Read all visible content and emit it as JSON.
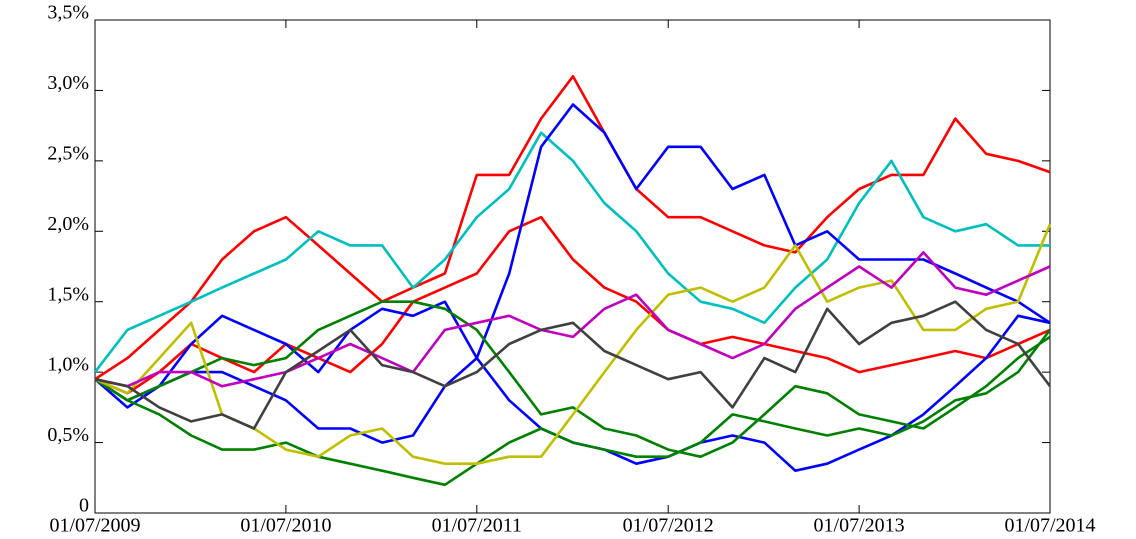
{
  "chart_data": {
    "type": "line",
    "x": [
      "2009-07-01",
      "2009-09-01",
      "2009-11-01",
      "2010-01-01",
      "2010-03-01",
      "2010-05-01",
      "2010-07-01",
      "2010-09-01",
      "2010-11-01",
      "2011-01-01",
      "2011-03-01",
      "2011-05-01",
      "2011-07-01",
      "2011-09-01",
      "2011-11-01",
      "2012-01-01",
      "2012-03-01",
      "2012-05-01",
      "2012-07-01",
      "2012-09-01",
      "2012-11-01",
      "2013-01-01",
      "2013-03-01",
      "2013-05-01",
      "2013-07-01",
      "2013-09-01",
      "2013-11-01",
      "2014-01-01",
      "2014-03-01",
      "2014-05-01",
      "2014-07-01"
    ],
    "series": [
      {
        "color": "#ff0000",
        "values": [
          0.95,
          1.1,
          1.3,
          1.5,
          1.8,
          2.0,
          2.1,
          1.9,
          1.7,
          1.5,
          1.6,
          1.7,
          2.4,
          2.4,
          2.8,
          3.1,
          2.7,
          2.3,
          2.1,
          2.1,
          2.0,
          1.9,
          1.85,
          2.1,
          2.3,
          2.4,
          2.4,
          2.8,
          2.55,
          2.5,
          2.42
        ]
      },
      {
        "color": "#ff0000",
        "values": [
          0.95,
          0.85,
          1.0,
          1.2,
          1.1,
          1.0,
          1.2,
          1.1,
          1.0,
          1.2,
          1.5,
          1.6,
          1.7,
          2.0,
          2.1,
          1.8,
          1.6,
          1.5,
          1.3,
          1.2,
          1.25,
          1.2,
          1.15,
          1.1,
          1.0,
          1.05,
          1.1,
          1.15,
          1.1,
          1.2,
          1.3
        ]
      },
      {
        "color": "#00bfbf",
        "values": [
          1.0,
          1.3,
          1.4,
          1.5,
          1.6,
          1.7,
          1.8,
          2.0,
          1.9,
          1.9,
          1.6,
          1.8,
          2.1,
          2.3,
          2.7,
          2.5,
          2.2,
          2.0,
          1.7,
          1.5,
          1.45,
          1.35,
          1.6,
          1.8,
          2.2,
          2.5,
          2.1,
          2.0,
          2.05,
          1.9,
          1.9
        ]
      },
      {
        "color": "#0000ff",
        "values": [
          0.95,
          0.8,
          0.9,
          1.0,
          1.0,
          0.9,
          0.8,
          0.6,
          0.6,
          0.5,
          0.55,
          0.9,
          1.1,
          1.7,
          2.6,
          2.9,
          2.7,
          2.3,
          2.6,
          2.6,
          2.3,
          2.4,
          1.9,
          2.0,
          1.8,
          1.8,
          1.8,
          1.7,
          1.6,
          1.5,
          1.35
        ]
      },
      {
        "color": "#0000ff",
        "values": [
          0.95,
          0.75,
          0.9,
          1.2,
          1.4,
          1.3,
          1.2,
          1.0,
          1.3,
          1.45,
          1.4,
          1.5,
          1.1,
          0.8,
          0.6,
          0.5,
          0.45,
          0.35,
          0.4,
          0.5,
          0.55,
          0.5,
          0.3,
          0.35,
          0.45,
          0.55,
          0.7,
          0.9,
          1.1,
          1.4,
          1.35
        ]
      },
      {
        "color": "#008000",
        "values": [
          0.95,
          0.8,
          0.7,
          0.55,
          0.45,
          0.45,
          0.5,
          0.4,
          0.35,
          0.3,
          0.25,
          0.2,
          0.35,
          0.5,
          0.6,
          0.5,
          0.45,
          0.4,
          0.4,
          0.5,
          0.7,
          0.65,
          0.6,
          0.55,
          0.6,
          0.55,
          0.65,
          0.8,
          0.85,
          1.0,
          1.3
        ]
      },
      {
        "color": "#008000",
        "values": [
          0.95,
          0.8,
          0.9,
          1.0,
          1.1,
          1.05,
          1.1,
          1.3,
          1.4,
          1.5,
          1.5,
          1.45,
          1.3,
          1.0,
          0.7,
          0.75,
          0.6,
          0.55,
          0.45,
          0.4,
          0.5,
          0.7,
          0.9,
          0.85,
          0.7,
          0.65,
          0.6,
          0.75,
          0.9,
          1.1,
          1.25
        ]
      },
      {
        "color": "#bfbf00",
        "values": [
          0.95,
          0.85,
          1.1,
          1.35,
          0.7,
          0.6,
          0.45,
          0.4,
          0.55,
          0.6,
          0.4,
          0.35,
          0.35,
          0.4,
          0.4,
          0.7,
          1.0,
          1.3,
          1.55,
          1.6,
          1.5,
          1.6,
          1.9,
          1.5,
          1.6,
          1.65,
          1.3,
          1.3,
          1.45,
          1.5,
          2.05
        ]
      },
      {
        "color": "#bf00bf",
        "values": [
          0.95,
          0.9,
          1.0,
          1.0,
          0.9,
          0.95,
          1.0,
          1.1,
          1.2,
          1.1,
          1.0,
          1.3,
          1.35,
          1.4,
          1.3,
          1.25,
          1.45,
          1.55,
          1.3,
          1.2,
          1.1,
          1.2,
          1.45,
          1.6,
          1.75,
          1.6,
          1.85,
          1.6,
          1.55,
          1.65,
          1.75
        ]
      },
      {
        "color": "#404040",
        "values": [
          0.95,
          0.9,
          0.75,
          0.65,
          0.7,
          0.6,
          1.0,
          1.15,
          1.3,
          1.05,
          1.0,
          0.9,
          1.0,
          1.2,
          1.3,
          1.35,
          1.15,
          1.05,
          0.95,
          1.0,
          0.75,
          1.1,
          1.0,
          1.45,
          1.2,
          1.35,
          1.4,
          1.5,
          1.3,
          1.2,
          0.9
        ]
      }
    ],
    "xlim": [
      "2009-07-01",
      "2014-07-01"
    ],
    "xticks": [
      {
        "value": "2009-07-01",
        "label": "01/07/2009"
      },
      {
        "value": "2010-07-01",
        "label": "01/07/2010"
      },
      {
        "value": "2011-07-01",
        "label": "01/07/2011"
      },
      {
        "value": "2012-07-01",
        "label": "01/07/2012"
      },
      {
        "value": "2013-07-01",
        "label": "01/07/2013"
      },
      {
        "value": "2014-07-01",
        "label": "01/07/2014"
      }
    ],
    "ylim": [
      0,
      3.5
    ],
    "yticks": [
      0,
      {
        "value": 0.5,
        "label": "0,5%"
      },
      {
        "value": 1,
        "label": "1,0%"
      },
      {
        "value": 1.5,
        "label": "1,5%"
      },
      {
        "value": 2,
        "label": "2,0%"
      },
      {
        "value": 2.5,
        "label": "2,5%"
      },
      {
        "value": 3,
        "label": "3,0%"
      },
      {
        "value": 3.5,
        "label": "3,5%"
      }
    ],
    "grid": false
  }
}
